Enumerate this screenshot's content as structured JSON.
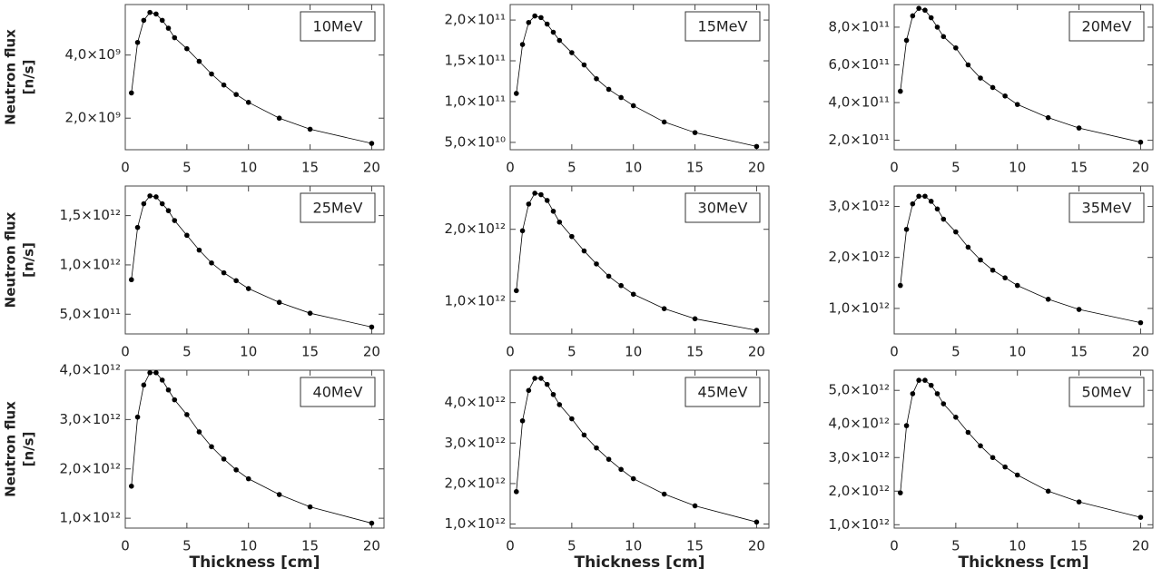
{
  "chart_data": [
    {
      "type": "line",
      "annotation": "10MeV",
      "ylabel": [
        "Neutron flux",
        "[n/s]"
      ],
      "color": "#000000",
      "x": [
        0.5,
        1,
        1.5,
        2,
        2.5,
        3,
        3.5,
        4,
        5,
        6,
        7,
        8,
        9,
        10,
        12.5,
        15,
        20
      ],
      "values": [
        2800000000.0,
        4400000000.0,
        5100000000.0,
        5350000000.0,
        5300000000.0,
        5100000000.0,
        4850000000.0,
        4550000000.0,
        4200000000.0,
        3800000000.0,
        3400000000.0,
        3050000000.0,
        2750000000.0,
        2500000000.0,
        2000000000.0,
        1650000000.0,
        1200000000.0
      ],
      "xlim": [
        0,
        21
      ],
      "xticks": [
        0,
        5,
        10,
        15,
        20
      ],
      "ylim": [
        1000000000.0,
        5600000000.0
      ],
      "yticks": [
        {
          "value": 2000000000.0,
          "label": "2,0×10⁹"
        },
        {
          "value": 4000000000.0,
          "label": "4,0×10⁹"
        }
      ]
    },
    {
      "type": "line",
      "annotation": "15MeV",
      "color": "#000000",
      "x": [
        0.5,
        1,
        1.5,
        2,
        2.5,
        3,
        3.5,
        4,
        5,
        6,
        7,
        8,
        9,
        10,
        12.5,
        15,
        20
      ],
      "values": [
        110000000000.0,
        170000000000.0,
        197000000000.0,
        205000000000.0,
        203000000000.0,
        195000000000.0,
        185000000000.0,
        175000000000.0,
        160000000000.0,
        145000000000.0,
        128000000000.0,
        115000000000.0,
        105000000000.0,
        95000000000.0,
        75000000000.0,
        62000000000.0,
        45000000000.0
      ],
      "xlim": [
        0,
        21
      ],
      "xticks": [
        0,
        5,
        10,
        15,
        20
      ],
      "ylim": [
        41000000000.0,
        219000000000.0
      ],
      "yticks": [
        {
          "value": 50000000000.0,
          "label": "5,0×10¹⁰"
        },
        {
          "value": 100000000000.0,
          "label": "1,0×10¹¹"
        },
        {
          "value": 150000000000.0,
          "label": "1,5×10¹¹"
        },
        {
          "value": 200000000000.0,
          "label": "2,0×10¹¹"
        }
      ]
    },
    {
      "type": "line",
      "annotation": "20MeV",
      "color": "#000000",
      "x": [
        0.5,
        1,
        1.5,
        2,
        2.5,
        3,
        3.5,
        4,
        5,
        6,
        7,
        8,
        9,
        10,
        12.5,
        15,
        20
      ],
      "values": [
        460000000000.0,
        730000000000.0,
        860000000000.0,
        900000000000.0,
        890000000000.0,
        850000000000.0,
        800000000000.0,
        750000000000.0,
        690000000000.0,
        600000000000.0,
        530000000000.0,
        480000000000.0,
        435000000000.0,
        390000000000.0,
        320000000000.0,
        265000000000.0,
        190000000000.0
      ],
      "xlim": [
        0,
        21
      ],
      "xticks": [
        0,
        5,
        10,
        15,
        20
      ],
      "ylim": [
        150000000000.0,
        920000000000.0
      ],
      "yticks": [
        {
          "value": 200000000000.0,
          "label": "2,0×10¹¹"
        },
        {
          "value": 400000000000.0,
          "label": "4,0×10¹¹"
        },
        {
          "value": 600000000000.0,
          "label": "6,0×10¹¹"
        },
        {
          "value": 800000000000.0,
          "label": "8,0×10¹¹"
        }
      ]
    },
    {
      "type": "line",
      "annotation": "25MeV",
      "ylabel": [
        "Neutron flux",
        "[n/s]"
      ],
      "color": "#000000",
      "x": [
        0.5,
        1,
        1.5,
        2,
        2.5,
        3,
        3.5,
        4,
        5,
        6,
        7,
        8,
        9,
        10,
        12.5,
        15,
        20
      ],
      "values": [
        850000000000.0,
        1380000000000.0,
        1620000000000.0,
        1700000000000.0,
        1690000000000.0,
        1620000000000.0,
        1550000000000.0,
        1450000000000.0,
        1300000000000.0,
        1150000000000.0,
        1020000000000.0,
        920000000000.0,
        840000000000.0,
        760000000000.0,
        620000000000.0,
        510000000000.0,
        370000000000.0
      ],
      "xlim": [
        0,
        21
      ],
      "xticks": [
        0,
        5,
        10,
        15,
        20
      ],
      "ylim": [
        300000000000.0,
        1800000000000.0
      ],
      "yticks": [
        {
          "value": 500000000000.0,
          "label": "5,0×10¹¹"
        },
        {
          "value": 1000000000000.0,
          "label": "1,0×10¹²"
        },
        {
          "value": 1500000000000.0,
          "label": "1,5×10¹²"
        }
      ]
    },
    {
      "type": "line",
      "annotation": "30MeV",
      "color": "#000000",
      "x": [
        0.5,
        1,
        1.5,
        2,
        2.5,
        3,
        3.5,
        4,
        5,
        6,
        7,
        8,
        9,
        10,
        12.5,
        15,
        20
      ],
      "values": [
        1150000000000.0,
        1980000000000.0,
        2350000000000.0,
        2500000000000.0,
        2480000000000.0,
        2400000000000.0,
        2250000000000.0,
        2100000000000.0,
        1900000000000.0,
        1700000000000.0,
        1520000000000.0,
        1350000000000.0,
        1220000000000.0,
        1100000000000.0,
        900000000000.0,
        760000000000.0,
        600000000000.0
      ],
      "xlim": [
        0,
        21
      ],
      "xticks": [
        0,
        5,
        10,
        15,
        20
      ],
      "ylim": [
        550000000000.0,
        2600000000000.0
      ],
      "yticks": [
        {
          "value": 1000000000000.0,
          "label": "1,0×10¹²"
        },
        {
          "value": 2000000000000.0,
          "label": "2,0×10¹²"
        }
      ]
    },
    {
      "type": "line",
      "annotation": "35MeV",
      "color": "#000000",
      "x": [
        0.5,
        1,
        1.5,
        2,
        2.5,
        3,
        3.5,
        4,
        5,
        6,
        7,
        8,
        9,
        10,
        12.5,
        15,
        20
      ],
      "values": [
        1450000000000.0,
        2550000000000.0,
        3050000000000.0,
        3200000000000.0,
        3200000000000.0,
        3100000000000.0,
        2950000000000.0,
        2750000000000.0,
        2500000000000.0,
        2200000000000.0,
        1950000000000.0,
        1750000000000.0,
        1600000000000.0,
        1450000000000.0,
        1180000000000.0,
        980000000000.0,
        720000000000.0
      ],
      "xlim": [
        0,
        21
      ],
      "xticks": [
        0,
        5,
        10,
        15,
        20
      ],
      "ylim": [
        500000000000.0,
        3400000000000.0
      ],
      "yticks": [
        {
          "value": 1000000000000.0,
          "label": "1,0×10¹²"
        },
        {
          "value": 2000000000000.0,
          "label": "2,0×10¹²"
        },
        {
          "value": 3000000000000.0,
          "label": "3,0×10¹²"
        }
      ]
    },
    {
      "type": "line",
      "annotation": "40MeV",
      "ylabel": [
        "Neutron flux",
        "[n/s]"
      ],
      "xlabel": "Thickness [cm]",
      "color": "#000000",
      "x": [
        0.5,
        1,
        1.5,
        2,
        2.5,
        3,
        3.5,
        4,
        5,
        6,
        7,
        8,
        9,
        10,
        12.5,
        15,
        20
      ],
      "values": [
        1650000000000.0,
        3050000000000.0,
        3700000000000.0,
        3950000000000.0,
        3950000000000.0,
        3800000000000.0,
        3600000000000.0,
        3400000000000.0,
        3100000000000.0,
        2750000000000.0,
        2450000000000.0,
        2200000000000.0,
        1980000000000.0,
        1800000000000.0,
        1480000000000.0,
        1230000000000.0,
        900000000000.0
      ],
      "xlim": [
        0,
        21
      ],
      "xticks": [
        0,
        5,
        10,
        15,
        20
      ],
      "ylim": [
        800000000000.0,
        4000000000000.0
      ],
      "yticks": [
        {
          "value": 1000000000000.0,
          "label": "1,0×10¹²"
        },
        {
          "value": 2000000000000.0,
          "label": "2,0×10¹²"
        },
        {
          "value": 3000000000000.0,
          "label": "3,0×10¹²"
        },
        {
          "value": 4000000000000.0,
          "label": "4,0×10¹²"
        }
      ]
    },
    {
      "type": "line",
      "annotation": "45MeV",
      "xlabel": "Thickness [cm]",
      "color": "#000000",
      "x": [
        0.5,
        1,
        1.5,
        2,
        2.5,
        3,
        3.5,
        4,
        5,
        6,
        7,
        8,
        9,
        10,
        12.5,
        15,
        20
      ],
      "values": [
        1800000000000.0,
        3550000000000.0,
        4300000000000.0,
        4600000000000.0,
        4600000000000.0,
        4450000000000.0,
        4200000000000.0,
        3950000000000.0,
        3600000000000.0,
        3200000000000.0,
        2880000000000.0,
        2600000000000.0,
        2350000000000.0,
        2120000000000.0,
        1740000000000.0,
        1450000000000.0,
        1050000000000.0
      ],
      "xlim": [
        0,
        21
      ],
      "xticks": [
        0,
        5,
        10,
        15,
        20
      ],
      "ylim": [
        900000000000.0,
        4800000000000.0
      ],
      "yticks": [
        {
          "value": 1000000000000.0,
          "label": "1,0×10¹²"
        },
        {
          "value": 2000000000000.0,
          "label": "2,0×10¹²"
        },
        {
          "value": 3000000000000.0,
          "label": "3,0×10¹²"
        },
        {
          "value": 4000000000000.0,
          "label": "4,0×10¹²"
        }
      ]
    },
    {
      "type": "line",
      "annotation": "50MeV",
      "xlabel": "Thickness [cm]",
      "color": "#000000",
      "x": [
        0.5,
        1,
        1.5,
        2,
        2.5,
        3,
        3.5,
        4,
        5,
        6,
        7,
        8,
        9,
        10,
        12.5,
        15,
        20
      ],
      "values": [
        1950000000000.0,
        3950000000000.0,
        4900000000000.0,
        5300000000000.0,
        5300000000000.0,
        5150000000000.0,
        4900000000000.0,
        4600000000000.0,
        4200000000000.0,
        3750000000000.0,
        3350000000000.0,
        3000000000000.0,
        2720000000000.0,
        2480000000000.0,
        2000000000000.0,
        1680000000000.0,
        1220000000000.0
      ],
      "xlim": [
        0,
        21
      ],
      "xticks": [
        0,
        5,
        10,
        15,
        20
      ],
      "ylim": [
        900000000000.0,
        5600000000000.0
      ],
      "yticks": [
        {
          "value": 1000000000000.0,
          "label": "1,0×10¹²"
        },
        {
          "value": 2000000000000.0,
          "label": "2,0×10¹²"
        },
        {
          "value": 3000000000000.0,
          "label": "3,0×10¹²"
        },
        {
          "value": 4000000000000.0,
          "label": "4,0×10¹²"
        },
        {
          "value": 5000000000000.0,
          "label": "5,0×10¹²"
        }
      ]
    }
  ]
}
